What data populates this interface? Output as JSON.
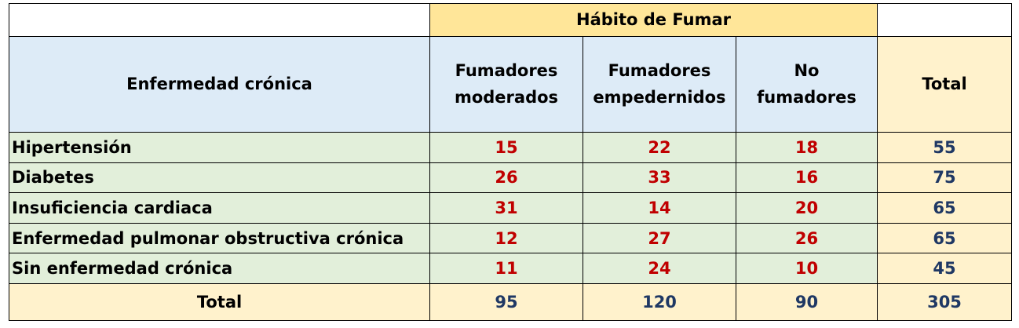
{
  "chart_data": {
    "type": "table",
    "column_group": "Hábito de Fumar",
    "row_header": "Enfermedad crónica",
    "columns": [
      "Fumadores moderados",
      "Fumadores empedernidos",
      "No fumadores"
    ],
    "columns_display": [
      [
        "Fumadores",
        "moderados"
      ],
      [
        "Fumadores",
        "empedernidos"
      ],
      [
        "No",
        "fumadores"
      ]
    ],
    "total_label": "Total",
    "rows": [
      {
        "label": "Hipertensión",
        "values": [
          15,
          22,
          18
        ],
        "total": 55
      },
      {
        "label": "Diabetes",
        "values": [
          26,
          33,
          16
        ],
        "total": 75
      },
      {
        "label": "Insuficiencia cardiaca",
        "values": [
          31,
          14,
          20
        ],
        "total": 65
      },
      {
        "label": "Enfermedad pulmonar obstructiva crónica",
        "values": [
          12,
          27,
          26
        ],
        "total": 65
      },
      {
        "label": "Sin enfermedad crónica",
        "values": [
          11,
          24,
          10
        ],
        "total": 45
      }
    ],
    "column_totals": [
      95,
      120,
      90
    ],
    "grand_total": 305
  },
  "colors": {
    "group_header_bg": "#ffe699",
    "column_header_bg": "#ddebf7",
    "total_bg": "#fff2cc",
    "body_bg": "#e2efda",
    "value_text": "#c00000",
    "total_text": "#1f3864"
  }
}
